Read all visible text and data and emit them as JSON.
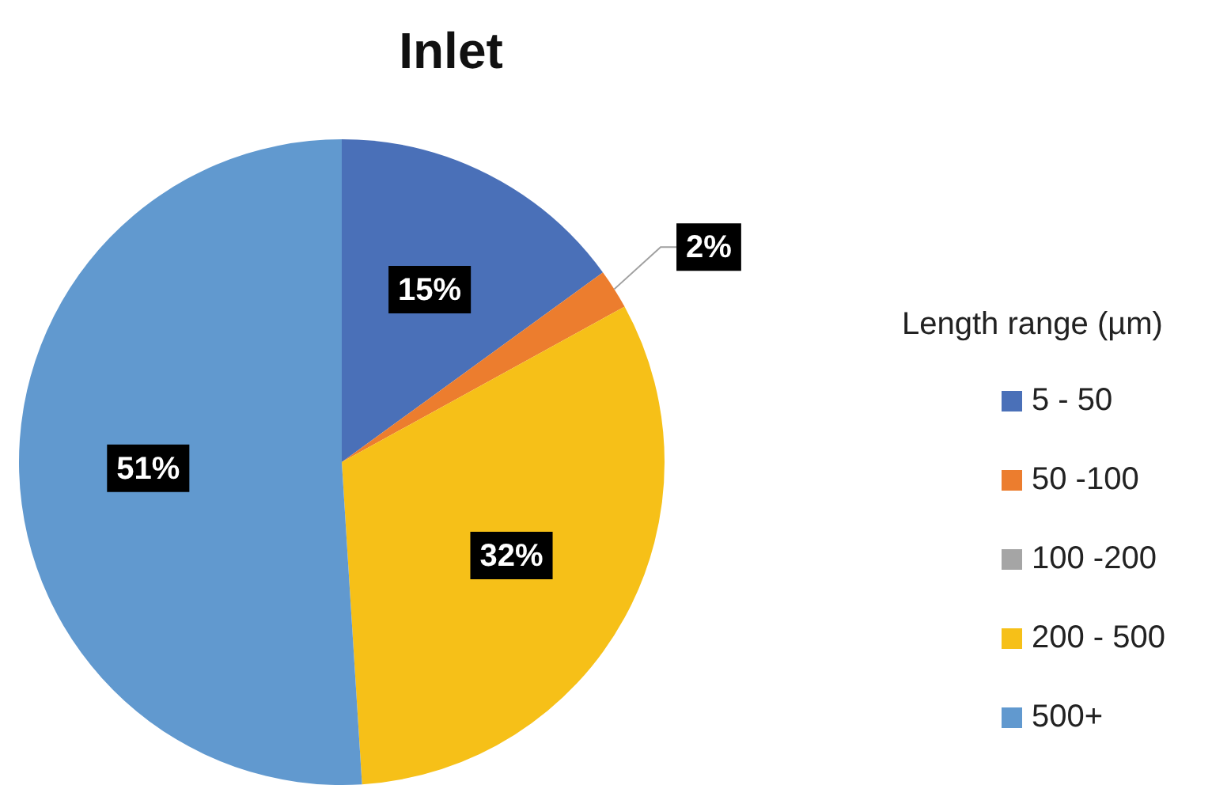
{
  "chart_data": {
    "type": "pie",
    "title": "Inlet",
    "legend_title": "Length range (µm)",
    "legend": "right",
    "categories": [
      "5 - 50",
      "50 -100",
      "100 -200",
      "200 - 500",
      "500+"
    ],
    "values": [
      15,
      2,
      0,
      32,
      51
    ],
    "colors": [
      "#4a70b8",
      "#ec7d2e",
      "#a5a5a5",
      "#f6c018",
      "#6199cf"
    ],
    "value_labels": [
      "15%",
      "2%",
      null,
      "32%",
      "51%"
    ]
  }
}
